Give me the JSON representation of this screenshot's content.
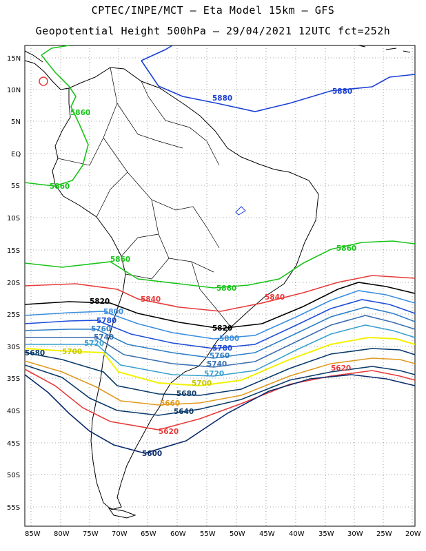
{
  "header": {
    "line1": "CPTEC/INPE/MCT – Eta Model 15km – GFS",
    "line2": "Geopotential Height 500hPa – 29/04/2021 12UTC fct=252h"
  },
  "axes": {
    "lat_labels": [
      "15N",
      "10N",
      "5N",
      "EQ",
      "5S",
      "10S",
      "15S",
      "20S",
      "25S",
      "30S",
      "35S",
      "40S",
      "45S",
      "50S",
      "55S"
    ],
    "lon_labels": [
      "85W",
      "80W",
      "75W",
      "70W",
      "65W",
      "60W",
      "55W",
      "50W",
      "45W",
      "40W",
      "35W",
      "30W",
      "25W",
      "20W"
    ]
  },
  "contour_colors": {
    "5880": "#1a3fd6",
    "5860": "#18c418",
    "5840": "#e83a3a",
    "5820": "#000000",
    "5800": "#3a8ee0",
    "5780": "#1e4ed8",
    "5760": "#2f7fc8",
    "5740": "#3a6fb0",
    "5720": "#3aa0d0",
    "5700": "#f2f200",
    "5680": "#0a3a6a",
    "5660": "#e09a20",
    "5620": "#e83a3a",
    "5600": "#0a2a6a"
  },
  "contour_labels": [
    {
      "text": "5880",
      "color": "#1a3fd6"
    },
    {
      "text": "5880",
      "color": "#1a3fd6"
    },
    {
      "text": "5860",
      "color": "#18c418"
    },
    {
      "text": "5860",
      "color": "#18c418"
    },
    {
      "text": "5860",
      "color": "#18c418"
    },
    {
      "text": "5860",
      "color": "#18c418"
    },
    {
      "text": "5860",
      "color": "#18c418"
    },
    {
      "text": "5840",
      "color": "#e83a3a"
    },
    {
      "text": "5840",
      "color": "#e83a3a"
    },
    {
      "text": "5820",
      "color": "#000000"
    },
    {
      "text": "5820",
      "color": "#000000"
    },
    {
      "text": "5800",
      "color": "#3a8ee0"
    },
    {
      "text": "5800",
      "color": "#3a8ee0"
    },
    {
      "text": "5780",
      "color": "#1e4ed8"
    },
    {
      "text": "5780",
      "color": "#1e4ed8"
    },
    {
      "text": "5760",
      "color": "#2f7fc8"
    },
    {
      "text": "5760",
      "color": "#2f7fc8"
    },
    {
      "text": "5740",
      "color": "#3a6fb0"
    },
    {
      "text": "5740",
      "color": "#3a6fb0"
    },
    {
      "text": "5720",
      "color": "#3aa0d0"
    },
    {
      "text": "5720",
      "color": "#3aa0d0"
    },
    {
      "text": "5700",
      "color": "#c8c800"
    },
    {
      "text": "5700",
      "color": "#c8c800"
    },
    {
      "text": "5680",
      "color": "#0a3a6a"
    },
    {
      "text": "5680",
      "color": "#0a3a6a"
    },
    {
      "text": "5660",
      "color": "#e09a20"
    },
    {
      "text": "5640",
      "color": "#0a3a6a"
    },
    {
      "text": "5620",
      "color": "#e83a3a"
    },
    {
      "text": "5620",
      "color": "#e83a3a"
    },
    {
      "text": "5600",
      "color": "#0a2a6a"
    }
  ]
}
